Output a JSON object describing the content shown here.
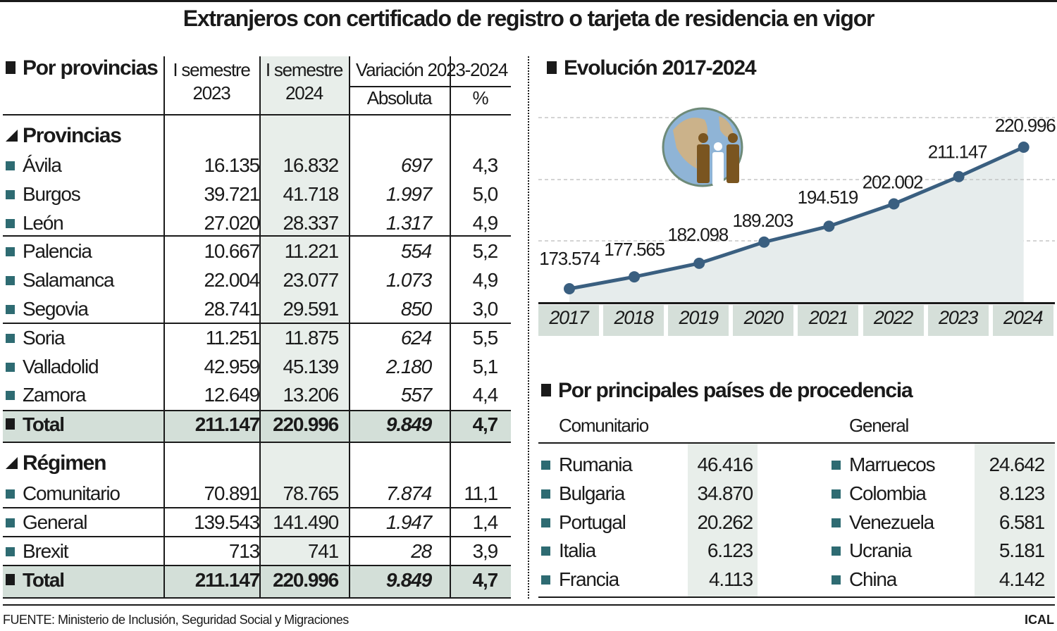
{
  "title": "Extranjeros con certificado de registro o tarjeta de residencia en vigor",
  "left": {
    "heading": "Por provincias",
    "col_2023": [
      "I semestre",
      "2023"
    ],
    "col_2024": [
      "I semestre",
      "2024"
    ],
    "col_var": "Variación 2023-2024",
    "col_abs": "Absoluta",
    "col_pct": "%",
    "group1": "Provincias",
    "provincias": [
      [
        "Ávila",
        "16.135",
        "16.832",
        "697",
        "4,3"
      ],
      [
        "Burgos",
        "39.721",
        "41.718",
        "1.997",
        "5,0"
      ],
      [
        "León",
        "27.020",
        "28.337",
        "1.317",
        "4,9"
      ],
      [
        "Palencia",
        "10.667",
        "11.221",
        "554",
        "5,2"
      ],
      [
        "Salamanca",
        "22.004",
        "23.077",
        "1.073",
        "4,9"
      ],
      [
        "Segovia",
        "28.741",
        "29.591",
        "850",
        "3,0"
      ],
      [
        "Soria",
        "11.251",
        "11.875",
        "624",
        "5,5"
      ],
      [
        "Valladolid",
        "42.959",
        "45.139",
        "2.180",
        "5,1"
      ],
      [
        "Zamora",
        "12.649",
        "13.206",
        "557",
        "4,4"
      ]
    ],
    "total1": [
      "Total",
      "211.147",
      "220.996",
      "9.849",
      "4,7"
    ],
    "group2": "Régimen",
    "regimen": [
      [
        "Comunitario",
        "70.891",
        "78.765",
        "7.874",
        "11,1"
      ],
      [
        "General",
        "139.543",
        "141.490",
        "1.947",
        "1,4"
      ],
      [
        "Brexit",
        "713",
        "741",
        "28",
        "3,9"
      ]
    ],
    "total2": [
      "Total",
      "211.147",
      "220.996",
      "9.849",
      "4,7"
    ]
  },
  "evolucion": {
    "heading": "Evolución 2017-2024"
  },
  "chart_data": {
    "type": "line",
    "title": "Evolución 2017-2024",
    "categories": [
      "2017",
      "2018",
      "2019",
      "2020",
      "2021",
      "2022",
      "2023",
      "2024"
    ],
    "values": [
      173574,
      177565,
      182098,
      189203,
      194519,
      202002,
      211147,
      220996
    ],
    "labels": [
      "173.574",
      "177.565",
      "182.098",
      "189.203",
      "194.519",
      "202.002",
      "211.147",
      "220.996"
    ],
    "grid": true,
    "colors": {
      "line": "#3a5f80",
      "area": "#e6ecec",
      "tile": "#d5dfd9"
    }
  },
  "paises": {
    "heading": "Por principales países de procedencia",
    "comunitario_label": "Comunitario",
    "general_label": "General",
    "comunitario": [
      [
        "Rumania",
        "46.416"
      ],
      [
        "Bulgaria",
        "34.870"
      ],
      [
        "Portugal",
        "20.262"
      ],
      [
        "Italia",
        "6.123"
      ],
      [
        "Francia",
        "4.113"
      ]
    ],
    "general": [
      [
        "Marruecos",
        "24.642"
      ],
      [
        "Colombia",
        "8.123"
      ],
      [
        "Venezuela",
        "6.581"
      ],
      [
        "Ucrania",
        "5.181"
      ],
      [
        "China",
        "4.142"
      ]
    ]
  },
  "footer": {
    "source": "FUENTE: Ministerio de Inclusión, Seguridad Social y Migraciones",
    "brand": "ICAL"
  },
  "colors": {
    "accent": "#2e6b72",
    "total_bg": "#d3dfd8",
    "col2024_bg": "#e8eeea"
  }
}
